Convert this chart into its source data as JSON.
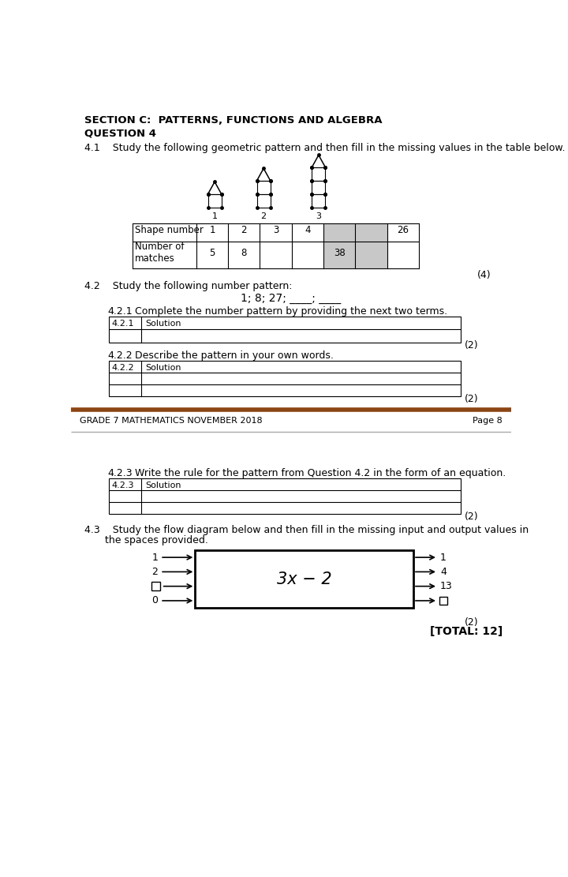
{
  "bg_color": "#ffffff",
  "section_title": "SECTION C:  PATTERNS, FUNCTIONS AND ALGEBRA",
  "question_title": "QUESTION 4",
  "q41_text": "4.1    Study the following geometric pattern and then fill in the missing values in the table below.",
  "q42_text": "4.2    Study the following number pattern:",
  "q42_pattern": "1; 8; 27; ____; ____",
  "q421_label": "4.2.1",
  "q421_text": "Complete the number pattern by providing the next two terms.",
  "q421_solution": "Solution",
  "q422_label": "4.2.2",
  "q422_text": "Describe the pattern in your own words.",
  "q422_solution": "Solution",
  "q423_label": "4.2.3",
  "q423_text": "Write the rule for the pattern from Question 4.2 in the form of an equation.",
  "q423_solution": "Solution",
  "q43_text1": "4.3    Study the flow diagram below and then fill in the missing input and output values in",
  "q43_text2": "the spaces provided.",
  "footer_left": "GRADE 7 MATHEMATICS NOVEMBER 2018",
  "footer_right": "Page 8",
  "total_text": "[TOTAL: 12]",
  "table_shape_row": [
    "Shape number",
    "1",
    "2",
    "3",
    "4",
    "",
    "",
    "26"
  ],
  "table_matches_row": [
    "Number of\nmatches",
    "5",
    "8",
    "",
    "",
    "38",
    "",
    ""
  ],
  "gray_cols": [
    5,
    6
  ],
  "mark4": "(4)",
  "mark2a": "(2)",
  "mark2b": "(2)",
  "mark2c": "(2)",
  "mark2d": "(2)",
  "flow_inputs": [
    "1",
    "2",
    "",
    "0"
  ],
  "flow_outputs": [
    "1",
    "4",
    "13",
    ""
  ],
  "flow_func": "3x − 2",
  "line_color": "#8B4513",
  "gray_color": "#c8c8c8"
}
